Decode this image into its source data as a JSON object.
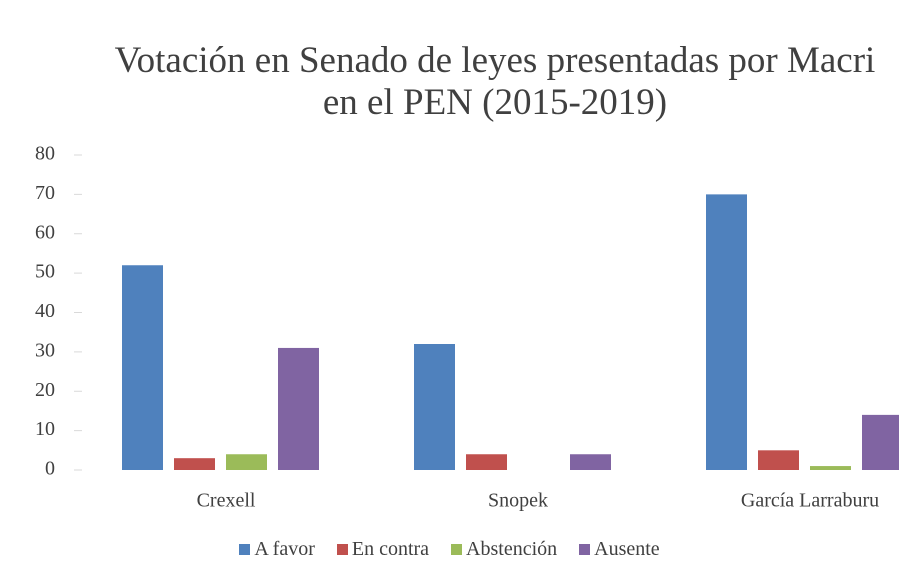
{
  "chart_data": {
    "type": "bar",
    "title": "Votación en Senado de leyes presentadas por Macri en el PEN (2015-2019)",
    "categories": [
      "Crexell",
      "Snopek",
      "García Larraburu"
    ],
    "series": [
      {
        "name": "A favor",
        "color": "#4f81bd",
        "values": [
          52,
          32,
          70
        ]
      },
      {
        "name": "En contra",
        "color": "#c0504d",
        "values": [
          3,
          4,
          5
        ]
      },
      {
        "name": "Abstención",
        "color": "#9bbb59",
        "values": [
          4,
          0,
          1
        ]
      },
      {
        "name": "Ausente",
        "color": "#8064a2",
        "values": [
          31,
          4,
          14
        ]
      }
    ],
    "ylim": [
      0,
      80
    ],
    "yticks": [
      0,
      10,
      20,
      30,
      40,
      50,
      60,
      70,
      80
    ],
    "legend": "bottom"
  }
}
